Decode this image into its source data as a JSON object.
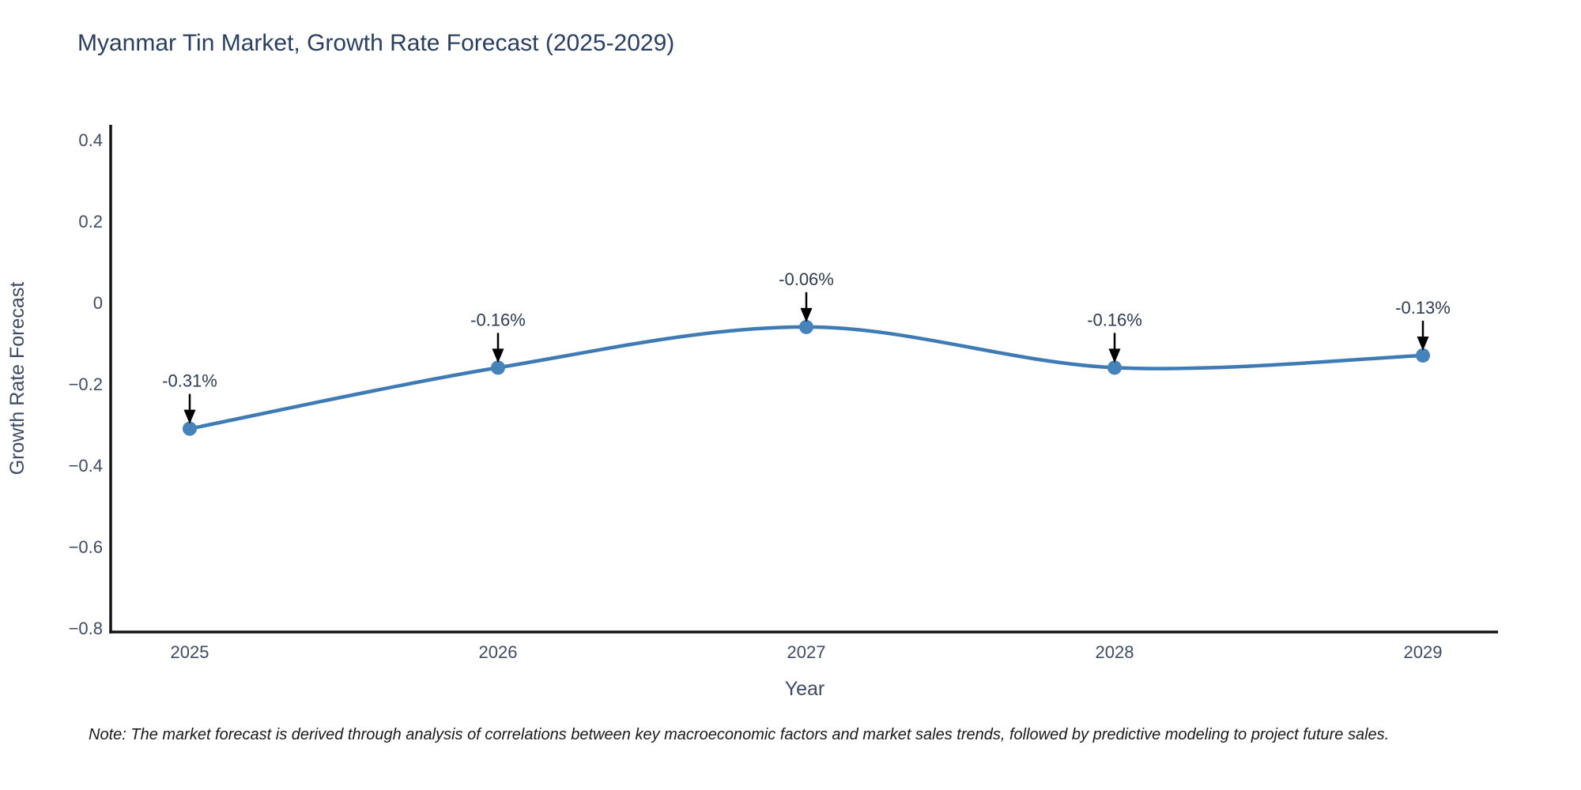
{
  "chart_data": {
    "type": "line",
    "title": "Myanmar Tin Market, Growth Rate Forecast (2025-2029)",
    "x": [
      "2025",
      "2026",
      "2027",
      "2028",
      "2029"
    ],
    "series": [
      {
        "name": "Growth Rate Forecast",
        "values": [
          -0.31,
          -0.16,
          -0.06,
          -0.16,
          -0.13
        ],
        "point_labels": [
          "-0.31%",
          "-0.16%",
          "-0.06%",
          "-0.16%",
          "-0.13%"
        ]
      }
    ],
    "xlabel": "Year",
    "ylabel": "Growth Rate Forecast",
    "yticks": [
      0.4,
      0.2,
      0,
      -0.2,
      -0.4,
      -0.6,
      -0.8
    ],
    "ylim": [
      -0.81,
      0.44
    ],
    "line_shape": "spline",
    "grid": false,
    "legend": "none",
    "annotation_style": "value-label-with-down-arrow"
  },
  "note": "Note: The market forecast is derived through analysis of correlations between key macroeconomic factors and market sales trends, followed by predictive modeling to project future sales.",
  "colors": {
    "line": "#3e7ab4",
    "marker": "#4583bb",
    "title_text": "#2a3f5f",
    "axis_line": "#131313",
    "tick_text": "#3f4a63",
    "axis_title_text": "#3f4a63",
    "annotation_text": "#2f3b52",
    "arrow": "#000000",
    "note_text": "#1a1a1a",
    "background": "#ffffff"
  }
}
